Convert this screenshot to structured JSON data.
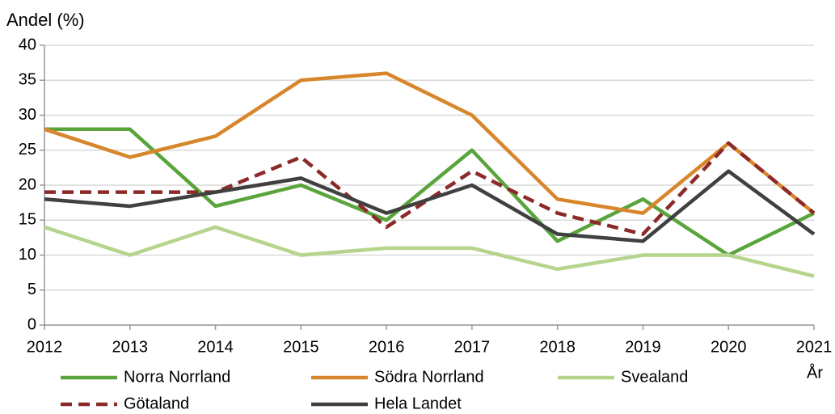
{
  "chart_data": {
    "type": "line",
    "y_label": "Andel (%)",
    "x_label": "År",
    "x": [
      2012,
      2013,
      2014,
      2015,
      2016,
      2017,
      2018,
      2019,
      2020,
      2021
    ],
    "xlim": [
      2012,
      2021
    ],
    "xticks": [
      2012,
      2013,
      2014,
      2015,
      2016,
      2017,
      2018,
      2019,
      2020,
      2021
    ],
    "ylim": [
      0,
      40
    ],
    "yticks": [
      0,
      5,
      10,
      15,
      20,
      25,
      30,
      35,
      40
    ],
    "grid": true,
    "legend": "bottom",
    "series": [
      {
        "name": "Norra Norrland",
        "color": "#5aa43c",
        "dash": "solid",
        "values": [
          28,
          28,
          17,
          20,
          15,
          25,
          12,
          18,
          10,
          16
        ]
      },
      {
        "name": "Södra Norrland",
        "color": "#d8862c",
        "dash": "solid",
        "values": [
          28,
          24,
          27,
          35,
          36,
          30,
          18,
          16,
          26,
          16
        ]
      },
      {
        "name": "Svealand",
        "color": "#b6d48c",
        "dash": "solid",
        "values": [
          14,
          10,
          14,
          10,
          11,
          11,
          8,
          10,
          10,
          7
        ]
      },
      {
        "name": "Götaland",
        "color": "#8c2a2a",
        "dash": "dashed",
        "values": [
          19,
          19,
          19,
          24,
          14,
          22,
          16,
          13,
          26,
          16
        ]
      },
      {
        "name": "Hela Landet",
        "color": "#404040",
        "dash": "solid",
        "values": [
          18,
          17,
          19,
          21,
          16,
          20,
          13,
          12,
          22,
          13
        ]
      }
    ]
  }
}
